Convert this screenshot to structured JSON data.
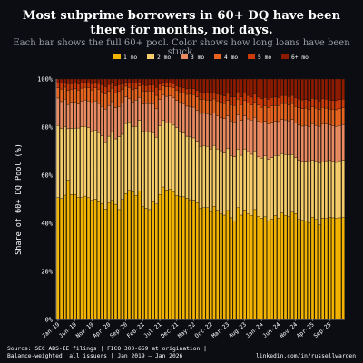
{
  "header": {
    "title_line1": "Most subprime borrowers in 60+ DQ have been",
    "title_line2": "there for months, not days.",
    "subtitle_line1": "Each bar shows the full 60+ pool. Color shows how long loans have been",
    "subtitle_line2": "stuck."
  },
  "footer": {
    "source_line1": "Source: SEC ABS-EE filings | FICO 300-659 at origination |",
    "source_line2": "Balance-weighted, all issuers | Jan 2019 – Jan 2026",
    "credit": "linkedin.com/in/russellwarden"
  },
  "colors": {
    "background": "#0b0d12",
    "axis": "#9a9ea8",
    "grid": "#2a2e36",
    "series": [
      "#f2b400",
      "#f5cd6b",
      "#e98a62",
      "#e8641e",
      "#cc3a0a",
      "#8e1a00"
    ]
  },
  "chart_data": {
    "type": "bar",
    "stacked": true,
    "title": "",
    "xlabel": "",
    "ylabel": "Share of 60+ DQ Pool (%)",
    "ylim": [
      0,
      100
    ],
    "yticks": [
      0,
      20,
      40,
      60,
      80,
      100
    ],
    "ytick_labels": [
      "0%",
      "20%",
      "40%",
      "60%",
      "80%",
      "100%"
    ],
    "legend": "top-center",
    "x_start": "2019-01",
    "months": 85,
    "xtick_labels": [
      "Jan-19",
      "Jun-19",
      "Nov-19",
      "Apr-20",
      "Sep-20",
      "Feb-21",
      "Jul-21",
      "Dec-21",
      "May-22",
      "Oct-22",
      "Mar-23",
      "Aug-23",
      "Jan-24",
      "Jun-24",
      "Nov-24",
      "Apr-25",
      "Sep-25"
    ],
    "series": [
      {
        "name": "1 mo",
        "values": [
          50.7,
          50.3,
          51.7,
          57.9,
          51.9,
          52.0,
          50.8,
          50.7,
          51.3,
          50.7,
          49.5,
          50.0,
          49.0,
          48.2,
          45.9,
          48.4,
          49.5,
          47.9,
          45.7,
          49.9,
          52.4,
          53.7,
          53.1,
          51.5,
          53.5,
          46.9,
          46.2,
          45.7,
          49.0,
          48.0,
          52.0,
          55.1,
          53.8,
          54.1,
          53.2,
          51.6,
          51.1,
          51.0,
          50.4,
          49.8,
          49.6,
          48.6,
          46.3,
          46.5,
          46.5,
          44.8,
          47.1,
          45.4,
          43.9,
          43.4,
          45.3,
          42.3,
          40.9,
          46.5,
          43.4,
          45.5,
          43.9,
          43.3,
          45.7,
          42.9,
          42.1,
          42.7,
          41.1,
          41.8,
          43.2,
          42.1,
          44.3,
          43.3,
          42.8,
          44.6,
          44.0,
          41.6,
          41.2,
          41.0,
          40.2,
          42.5,
          41.6,
          39.4,
          42.2,
          42.0,
          42.5,
          42.3,
          42.2,
          42.3,
          42.4
        ]
      },
      {
        "name": "2 mo",
        "values": [
          30.0,
          29.0,
          28.5,
          21.4,
          27.5,
          27.5,
          28.8,
          29.5,
          29.0,
          29.0,
          28.6,
          28.8,
          28.7,
          28.2,
          27.6,
          27.8,
          28.6,
          27.2,
          30.3,
          27.1,
          29.1,
          28.5,
          27.0,
          28.8,
          29.3,
          31.5,
          31.7,
          32.4,
          28.6,
          27.8,
          28.6,
          27.6,
          27.8,
          27.5,
          27.6,
          28.1,
          27.3,
          26.5,
          25.8,
          26.1,
          25.9,
          25.5,
          25.7,
          25.8,
          25.5,
          26.1,
          25.3,
          25.5,
          26.3,
          25.8,
          25.7,
          25.7,
          26.8,
          24.3,
          24.9,
          25.4,
          25.9,
          25.4,
          24.4,
          24.7,
          25.0,
          25.3,
          25.5,
          25.5,
          25.0,
          26.1,
          24.7,
          25.3,
          25.6,
          24.0,
          23.3,
          24.5,
          24.5,
          24.8,
          25.2,
          23.6,
          24.3,
          25.6,
          23.4,
          24.0,
          23.6,
          23.4,
          23.1,
          23.7,
          23.8
        ]
      },
      {
        "name": "3 mo",
        "values": [
          11.4,
          11.3,
          11.4,
          10.1,
          11.0,
          10.8,
          10.0,
          10.6,
          10.9,
          11.2,
          11.8,
          12.1,
          12.1,
          12.2,
          14.0,
          12.8,
          12.5,
          13.0,
          12.6,
          13.0,
          11.1,
          9.6,
          10.4,
          10.9,
          9.6,
          11.1,
          11.9,
          11.6,
          12.1,
          11.8,
          10.9,
          10.7,
          11.2,
          11.3,
          11.5,
          11.4,
          11.8,
          12.2,
          12.5,
          12.5,
          12.8,
          12.9,
          13.7,
          13.4,
          13.6,
          14.2,
          13.5,
          13.7,
          13.7,
          14.4,
          13.7,
          14.6,
          14.5,
          14.3,
          14.5,
          13.8,
          13.6,
          14.2,
          14.0,
          14.9,
          14.6,
          14.4,
          14.6,
          14.7,
          14.2,
          14.1,
          14.2,
          14.4,
          14.2,
          14.5,
          14.5,
          14.8,
          14.7,
          14.9,
          14.7,
          15.3,
          14.8,
          15.3,
          15.6,
          15.2,
          14.8,
          14.9,
          15.0,
          14.7,
          14.8
        ]
      },
      {
        "name": "4 mo",
        "values": [
          4.2,
          5.2,
          5.0,
          5.9,
          5.3,
          5.7,
          5.8,
          5.4,
          5.3,
          5.4,
          5.5,
          5.4,
          5.9,
          6.1,
          6.3,
          5.9,
          5.6,
          6.2,
          6.2,
          5.6,
          4.4,
          4.7,
          5.1,
          4.8,
          4.7,
          5.5,
          5.0,
          5.3,
          5.3,
          5.6,
          4.2,
          3.7,
          4.0,
          3.8,
          4.0,
          4.2,
          4.5,
          4.6,
          4.9,
          5.3,
          5.2,
          5.6,
          5.7,
          5.9,
          5.6,
          6.0,
          5.8,
          6.3,
          6.4,
          6.2,
          6.4,
          6.7,
          6.8,
          6.5,
          6.5,
          6.4,
          6.6,
          6.3,
          6.3,
          6.7,
          6.5,
          6.5,
          6.8,
          6.8,
          6.6,
          6.7,
          6.6,
          6.8,
          6.6,
          6.7,
          6.8,
          7.2,
          7.3,
          7.2,
          7.2,
          7.0,
          7.2,
          7.0,
          7.0,
          6.7,
          6.6,
          6.8,
          6.9,
          7.0,
          7.0
        ]
      },
      {
        "name": "5 mo",
        "values": [
          1.9,
          2.4,
          1.9,
          2.7,
          2.3,
          2.2,
          2.5,
          2.2,
          2.0,
          2.1,
          2.6,
          2.3,
          2.4,
          2.9,
          3.0,
          2.8,
          2.4,
          2.8,
          2.8,
          2.3,
          1.6,
          2.0,
          2.6,
          2.2,
          1.7,
          2.7,
          2.5,
          2.5,
          2.6,
          3.3,
          2.1,
          1.4,
          1.6,
          1.5,
          1.7,
          1.9,
          2.0,
          2.0,
          2.3,
          2.4,
          2.5,
          2.7,
          2.8,
          2.8,
          2.9,
          2.9,
          2.6,
          2.9,
          3.2,
          3.1,
          2.9,
          3.3,
          3.6,
          3.1,
          3.3,
          3.1,
          3.2,
          3.3,
          3.3,
          3.3,
          3.6,
          3.5,
          3.6,
          3.5,
          3.5,
          3.3,
          3.3,
          3.4,
          3.5,
          3.4,
          3.6,
          3.6,
          3.6,
          3.5,
          3.7,
          3.6,
          3.8,
          3.5,
          3.6,
          3.7,
          3.7,
          3.7,
          3.8,
          3.7,
          3.6
        ]
      },
      {
        "name": "6+ mo",
        "values": [
          1.8,
          1.8,
          1.5,
          2.0,
          2.0,
          1.8,
          2.1,
          1.6,
          1.5,
          1.6,
          2.0,
          1.4,
          1.9,
          2.4,
          3.2,
          2.3,
          1.4,
          2.9,
          2.4,
          2.1,
          1.4,
          1.5,
          1.8,
          1.8,
          1.2,
          2.3,
          2.7,
          2.5,
          2.4,
          3.5,
          2.2,
          1.5,
          1.6,
          1.8,
          2.0,
          2.8,
          3.3,
          3.7,
          4.1,
          3.9,
          4.0,
          4.7,
          5.8,
          5.6,
          5.9,
          6.0,
          5.7,
          6.2,
          6.5,
          7.1,
          6.0,
          7.4,
          7.4,
          5.3,
          7.4,
          5.8,
          6.8,
          7.5,
          6.3,
          7.5,
          8.2,
          7.6,
          8.4,
          7.7,
          7.5,
          7.7,
          6.9,
          6.8,
          7.3,
          6.8,
          7.8,
          8.3,
          8.7,
          8.6,
          9.0,
          8.0,
          8.3,
          9.2,
          8.2,
          8.4,
          8.8,
          8.9,
          9.0,
          8.6,
          8.4
        ]
      }
    ]
  }
}
